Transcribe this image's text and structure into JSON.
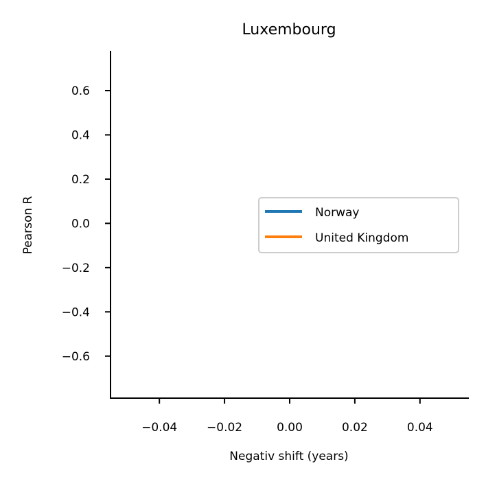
{
  "chart_data": {
    "type": "line",
    "title": "Luxembourg",
    "xlabel": "Negativ shift (years)",
    "ylabel": "Pearson R",
    "xlim": [
      -0.055,
      0.055
    ],
    "ylim": [
      -0.79,
      0.78
    ],
    "xticks": [
      -0.04,
      -0.02,
      0.0,
      0.02,
      0.04
    ],
    "xtick_labels": [
      "−0.04",
      "−0.02",
      "0.00",
      "0.02",
      "0.04"
    ],
    "yticks": [
      0.6,
      0.4,
      0.2,
      0.0,
      -0.2,
      -0.4,
      -0.6
    ],
    "ytick_labels": [
      "0.6",
      "0.4",
      "0.2",
      "0.0",
      "−0.2",
      "−0.4",
      "−0.6"
    ],
    "grid": false,
    "legend_position": "center-right",
    "series": [
      {
        "name": "Norway",
        "color": "#1f77b4",
        "x": [],
        "y": []
      },
      {
        "name": "United Kingdom",
        "color": "#ff7f0e",
        "x": [],
        "y": []
      }
    ]
  }
}
